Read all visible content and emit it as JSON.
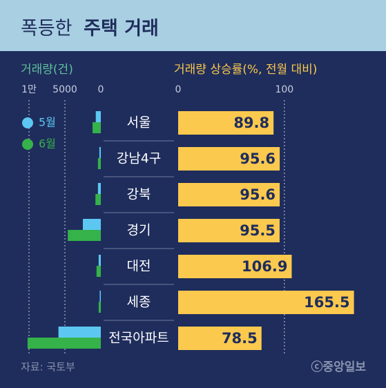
{
  "title": [
    "폭등한",
    "주택 거래"
  ],
  "source": "자료: 국토부",
  "credit": "ⓒ중앙일보",
  "chart_data": [
    {
      "type": "bar",
      "orientation": "horizontal",
      "reversed": true,
      "axis_label": "거래량(건)",
      "xlim": [
        0,
        10500
      ],
      "xticks": [
        {
          "value": 10000,
          "label": "1만"
        },
        5000,
        0
      ],
      "grid": true,
      "legend": "left",
      "series": [
        {
          "name": "5월",
          "color": "#5cc8f2",
          "values": [
            700,
            200,
            400,
            2500,
            300,
            150,
            5900
          ]
        },
        {
          "name": "6월",
          "color": "#35b24a",
          "values": [
            1150,
            400,
            750,
            4600,
            600,
            300,
            10200
          ]
        }
      ]
    },
    {
      "type": "bar",
      "orientation": "horizontal",
      "axis_label": "거래량 상승률(%, 전월 대비)",
      "categories": [
        "서울",
        "강남4구",
        "강북",
        "경기",
        "대전",
        "세종",
        "전국아파트"
      ],
      "values": [
        89.8,
        95.6,
        95.6,
        95.5,
        106.9,
        165.5,
        78.5
      ],
      "color": "#fbc94e",
      "xlim": [
        0,
        195
      ],
      "xticks": [
        0,
        100
      ],
      "grid": true
    }
  ]
}
